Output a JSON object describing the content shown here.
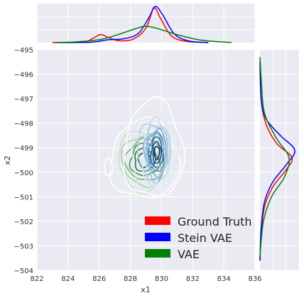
{
  "chart_data": {
    "type": "joint_kde",
    "xlabel": "x1",
    "ylabel": "x2",
    "xlim": [
      822,
      836
    ],
    "ylim": [
      -504,
      -495
    ],
    "xticks": [
      "822",
      "824",
      "826",
      "828",
      "830",
      "832",
      "834",
      "836"
    ],
    "yticks": [
      "−495",
      "−496",
      "−497",
      "−498",
      "−499",
      "−500",
      "−501",
      "−502",
      "−503",
      "−504"
    ],
    "xtick_values": [
      822,
      824,
      826,
      828,
      830,
      832,
      834,
      836
    ],
    "ytick_values": [
      -495,
      -496,
      -497,
      -498,
      -499,
      -500,
      -501,
      -502,
      -503,
      -504
    ],
    "grid": true,
    "legend_position": "lower-right",
    "series": [
      {
        "name": "Ground Truth",
        "color": "#ff0000",
        "contour_centers": [
          [
            829.5,
            -499.1
          ],
          [
            826.6,
            -499.8
          ]
        ],
        "marginal_x": [
          [
            823,
            0
          ],
          [
            825,
            0.02
          ],
          [
            825.6,
            0.12
          ],
          [
            826.1,
            0.22
          ],
          [
            826.6,
            0.14
          ],
          [
            827.3,
            0.05
          ],
          [
            828.2,
            0.1
          ],
          [
            829.0,
            0.4
          ],
          [
            829.5,
            0.95
          ],
          [
            829.9,
            0.7
          ],
          [
            830.6,
            0.2
          ],
          [
            831.5,
            0.04
          ],
          [
            833,
            0.0
          ]
        ],
        "marginal_y": [
          [
            -495.5,
            0
          ],
          [
            -497,
            0.02
          ],
          [
            -498,
            0.1
          ],
          [
            -498.8,
            0.28
          ],
          [
            -499.4,
            0.55
          ],
          [
            -499.9,
            0.45
          ],
          [
            -500.6,
            0.22
          ],
          [
            -501.4,
            0.08
          ],
          [
            -502.5,
            0.02
          ],
          [
            -503.6,
            0
          ]
        ]
      },
      {
        "name": "Stein VAE",
        "color": "#0000ff",
        "contour_centers": [
          [
            829.7,
            -499.2
          ]
        ],
        "marginal_x": [
          [
            823.5,
            0
          ],
          [
            825.5,
            0.01
          ],
          [
            826.6,
            0.08
          ],
          [
            827.5,
            0.1
          ],
          [
            828.5,
            0.25
          ],
          [
            829.2,
            0.7
          ],
          [
            829.6,
            1.0
          ],
          [
            830.1,
            0.75
          ],
          [
            830.8,
            0.25
          ],
          [
            831.7,
            0.05
          ],
          [
            833,
            0.0
          ]
        ],
        "marginal_y": [
          [
            -495.5,
            0
          ],
          [
            -497,
            0.02
          ],
          [
            -497.8,
            0.1
          ],
          [
            -498.5,
            0.35
          ],
          [
            -499.1,
            0.6
          ],
          [
            -499.7,
            0.45
          ],
          [
            -500.4,
            0.22
          ],
          [
            -501.2,
            0.08
          ],
          [
            -502.3,
            0.02
          ],
          [
            -503.6,
            0
          ]
        ]
      },
      {
        "name": "VAE",
        "color": "#008000",
        "contour_centers": [
          [
            828.9,
            -499.5
          ]
        ],
        "marginal_x": [
          [
            823.2,
            0
          ],
          [
            824.5,
            0.02
          ],
          [
            826,
            0.08
          ],
          [
            827.2,
            0.22
          ],
          [
            828.3,
            0.38
          ],
          [
            829.0,
            0.45
          ],
          [
            829.8,
            0.38
          ],
          [
            831,
            0.22
          ],
          [
            832.5,
            0.07
          ],
          [
            834.5,
            0.0
          ]
        ],
        "marginal_y": [
          [
            -495.3,
            0
          ],
          [
            -496.5,
            0.03
          ],
          [
            -497.6,
            0.08
          ],
          [
            -498.6,
            0.28
          ],
          [
            -499.4,
            0.5
          ],
          [
            -500.2,
            0.42
          ],
          [
            -501,
            0.2
          ],
          [
            -502,
            0.06
          ],
          [
            -503.4,
            0
          ]
        ]
      }
    ]
  },
  "legend": {
    "items": [
      {
        "label": "Ground Truth",
        "color": "#ff0000"
      },
      {
        "label": "Stein VAE",
        "color": "#0000ff"
      },
      {
        "label": "VAE",
        "color": "#008000"
      }
    ]
  }
}
